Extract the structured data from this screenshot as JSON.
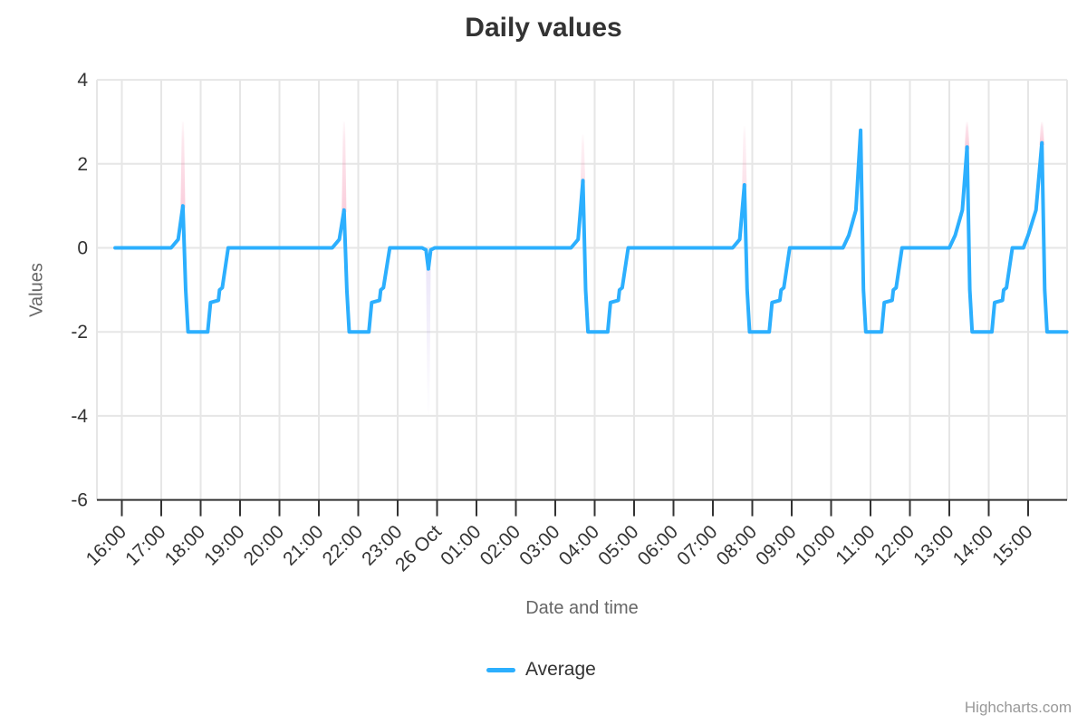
{
  "credits": "Highcharts.com",
  "chart_data": {
    "type": "line",
    "title": "Daily values",
    "xlabel": "Date and time",
    "ylabel": "Values",
    "legend": [
      "Average"
    ],
    "legend_position": "bottom-center",
    "grid": true,
    "ylim": [
      -6,
      4
    ],
    "y_ticks": [
      4,
      2,
      0,
      -2,
      -4,
      -6
    ],
    "x_tick_labels": [
      "16:00",
      "17:00",
      "18:00",
      "19:00",
      "20:00",
      "21:00",
      "22:00",
      "23:00",
      "26 Oct",
      "01:00",
      "02:00",
      "03:00",
      "04:00",
      "05:00",
      "06:00",
      "07:00",
      "08:00",
      "09:00",
      "10:00",
      "11:00",
      "12:00",
      "13:00",
      "14:00",
      "15:00"
    ],
    "x_encoding": "hours after the first tick (16:00, 25 Oct); tick i is at hour i; 26 Oct = midnight",
    "xlim": [
      -0.63,
      24.0
    ],
    "series": [
      {
        "name": "Average",
        "color": "#2caffe",
        "points": [
          [
            -0.17,
            0
          ],
          [
            1.25,
            0
          ],
          [
            1.43,
            0.2
          ],
          [
            1.55,
            1.0
          ],
          [
            1.62,
            -1.0
          ],
          [
            1.68,
            -2
          ],
          [
            2.18,
            -2
          ],
          [
            2.25,
            -1.3
          ],
          [
            2.45,
            -1.25
          ],
          [
            2.48,
            -1.0
          ],
          [
            2.55,
            -0.95
          ],
          [
            2.7,
            0
          ],
          [
            5.34,
            0
          ],
          [
            5.52,
            0.2
          ],
          [
            5.64,
            0.9
          ],
          [
            5.71,
            -1.0
          ],
          [
            5.77,
            -2
          ],
          [
            6.27,
            -2
          ],
          [
            6.34,
            -1.3
          ],
          [
            6.54,
            -1.25
          ],
          [
            6.57,
            -1.0
          ],
          [
            6.64,
            -0.95
          ],
          [
            6.8,
            0
          ],
          [
            7.62,
            0
          ],
          [
            7.72,
            -0.05
          ],
          [
            7.78,
            -0.5
          ],
          [
            7.84,
            -0.05
          ],
          [
            7.94,
            0
          ],
          [
            11.4,
            0
          ],
          [
            11.58,
            0.2
          ],
          [
            11.7,
            1.6
          ],
          [
            11.77,
            -1.0
          ],
          [
            11.83,
            -2
          ],
          [
            12.33,
            -2
          ],
          [
            12.4,
            -1.3
          ],
          [
            12.6,
            -1.25
          ],
          [
            12.63,
            -1.0
          ],
          [
            12.7,
            -0.95
          ],
          [
            12.85,
            0
          ],
          [
            15.5,
            0
          ],
          [
            15.68,
            0.2
          ],
          [
            15.8,
            1.5
          ],
          [
            15.87,
            -1.0
          ],
          [
            15.93,
            -2
          ],
          [
            16.43,
            -2
          ],
          [
            16.5,
            -1.3
          ],
          [
            16.7,
            -1.25
          ],
          [
            16.73,
            -1.0
          ],
          [
            16.8,
            -0.95
          ],
          [
            16.95,
            0
          ],
          [
            18.3,
            0
          ],
          [
            18.45,
            0.3
          ],
          [
            18.63,
            0.9
          ],
          [
            18.75,
            2.8
          ],
          [
            18.82,
            -1.0
          ],
          [
            18.88,
            -2
          ],
          [
            19.28,
            -2
          ],
          [
            19.35,
            -1.3
          ],
          [
            19.55,
            -1.25
          ],
          [
            19.58,
            -1.0
          ],
          [
            19.65,
            -0.95
          ],
          [
            19.8,
            0
          ],
          [
            21.0,
            0
          ],
          [
            21.15,
            0.3
          ],
          [
            21.33,
            0.9
          ],
          [
            21.45,
            2.4
          ],
          [
            21.52,
            -1.0
          ],
          [
            21.58,
            -2
          ],
          [
            22.08,
            -2
          ],
          [
            22.15,
            -1.3
          ],
          [
            22.35,
            -1.25
          ],
          [
            22.38,
            -1.0
          ],
          [
            22.45,
            -0.95
          ],
          [
            22.6,
            0
          ],
          [
            22.88,
            0
          ],
          [
            23.0,
            0.3
          ],
          [
            23.2,
            0.9
          ],
          [
            23.35,
            2.5
          ],
          [
            23.42,
            -1.0
          ],
          [
            23.48,
            -2
          ],
          [
            23.98,
            -2
          ]
        ]
      }
    ],
    "faint_vertical_bands": {
      "description": "pale translucent spikes behind the line: pink spikes pointing up above peaks, one lavender spike pointing down at the 23:47 dip",
      "pink_color": "#f27ca1",
      "lavender_color": "#b9a6e8",
      "up_spikes": [
        {
          "t": 1.55,
          "from": 0.95,
          "to": 3.0,
          "opacity": 0.5
        },
        {
          "t": 5.64,
          "from": 0.85,
          "to": 3.0,
          "opacity": 0.5
        },
        {
          "t": 11.7,
          "from": 1.55,
          "to": 2.7,
          "opacity": 0.3
        },
        {
          "t": 15.8,
          "from": 1.45,
          "to": 2.9,
          "opacity": 0.3
        },
        {
          "t": 21.45,
          "from": 2.35,
          "to": 3.0,
          "opacity": 0.55
        },
        {
          "t": 23.35,
          "from": 2.45,
          "to": 3.0,
          "opacity": 0.55
        }
      ],
      "down_spikes": [
        {
          "t": 7.78,
          "from": -0.5,
          "to": -3.95,
          "opacity": 0.45
        }
      ]
    }
  }
}
